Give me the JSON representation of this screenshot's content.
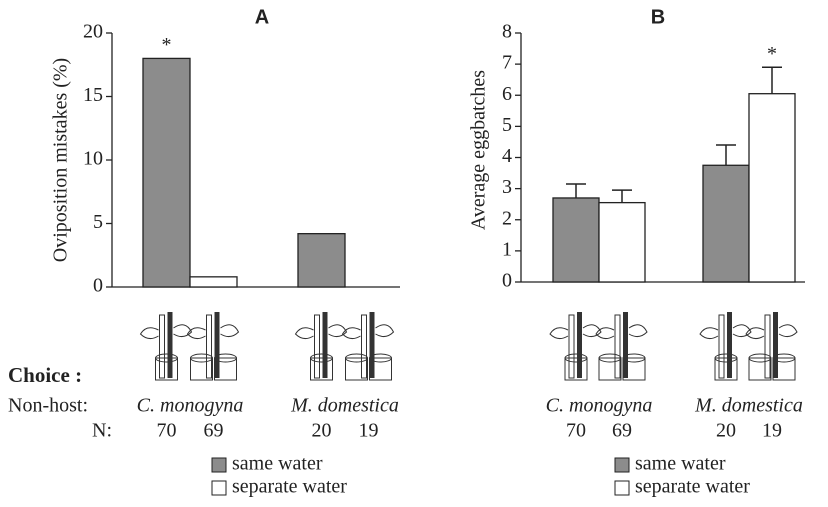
{
  "chart_data": [
    {
      "type": "bar",
      "title": "A",
      "y_label": "Oviposition mistakes (%)",
      "categories": [
        "C. monogyna",
        "M. domestica"
      ],
      "series": [
        {
          "name": "same water",
          "color": "#8c8c8c",
          "values": [
            18,
            4.2
          ],
          "n": [
            70,
            20
          ],
          "annotations": [
            "*",
            null
          ]
        },
        {
          "name": "separate water",
          "color": "#ffffff",
          "values": [
            0.8,
            0
          ],
          "n": [
            69,
            19
          ],
          "annotations": [
            null,
            null
          ]
        }
      ],
      "ylim": [
        0,
        20
      ],
      "yticks": [
        0,
        5,
        10,
        15,
        20
      ]
    },
    {
      "type": "bar",
      "title": "B",
      "y_label": "Average eggbatches",
      "categories": [
        "C. monogyna",
        "M. domestica"
      ],
      "series": [
        {
          "name": "same water",
          "color": "#8c8c8c",
          "values": [
            2.7,
            3.75
          ],
          "errors": [
            0.45,
            0.65
          ],
          "n": [
            70,
            20
          ],
          "annotations": [
            null,
            null
          ]
        },
        {
          "name": "separate water",
          "color": "#ffffff",
          "values": [
            2.55,
            6.05
          ],
          "errors": [
            0.4,
            0.85
          ],
          "n": [
            69,
            19
          ],
          "annotations": [
            null,
            "*"
          ]
        }
      ],
      "ylim": [
        0,
        8
      ],
      "yticks": [
        0,
        1,
        2,
        3,
        4,
        5,
        6,
        7,
        8
      ]
    }
  ],
  "labels": {
    "choice": "Choice :",
    "non_host": "Non-host:",
    "n": "N:"
  }
}
